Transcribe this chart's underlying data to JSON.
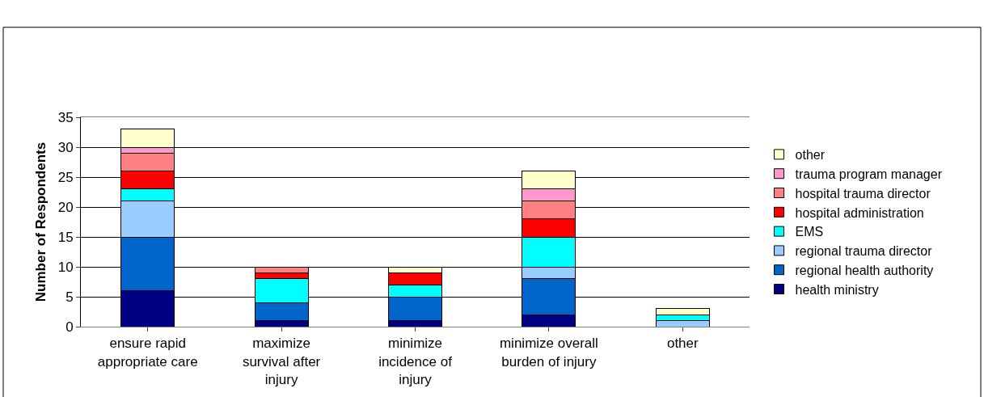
{
  "chart_data": {
    "type": "bar",
    "stacked": true,
    "ylabel": "Number of Respondents",
    "categories": [
      "ensure rapid appropriate care",
      "maximize survival after injury",
      "minimize incidence of injury",
      "minimize overall burden of injury",
      "other"
    ],
    "series": [
      {
        "name": "health ministry",
        "color": "#000080",
        "values": [
          6,
          1,
          1,
          2,
          0
        ]
      },
      {
        "name": "regional health authority",
        "color": "#0066cc",
        "values": [
          9,
          3,
          4,
          6,
          0
        ]
      },
      {
        "name": "regional trauma director",
        "color": "#99ccff",
        "values": [
          6,
          0,
          0,
          2,
          1
        ]
      },
      {
        "name": "EMS",
        "color": "#00ffff",
        "values": [
          2,
          4,
          2,
          5,
          1
        ]
      },
      {
        "name": "hospital administration",
        "color": "#ff0000",
        "values": [
          3,
          1,
          2,
          3,
          0
        ]
      },
      {
        "name": "hospital trauma director",
        "color": "#ff8080",
        "values": [
          3,
          1,
          0,
          3,
          0
        ]
      },
      {
        "name": "trauma program manager",
        "color": "#ff99cc",
        "values": [
          1,
          0,
          0,
          2,
          0
        ]
      },
      {
        "name": "other",
        "color": "#ffffcc",
        "values": [
          3,
          0,
          1,
          3,
          1
        ]
      }
    ],
    "ylim": [
      0,
      35
    ],
    "yticks": [
      0,
      5,
      10,
      15,
      20,
      25,
      30,
      35
    ],
    "grid": "y",
    "legend": "right"
  }
}
